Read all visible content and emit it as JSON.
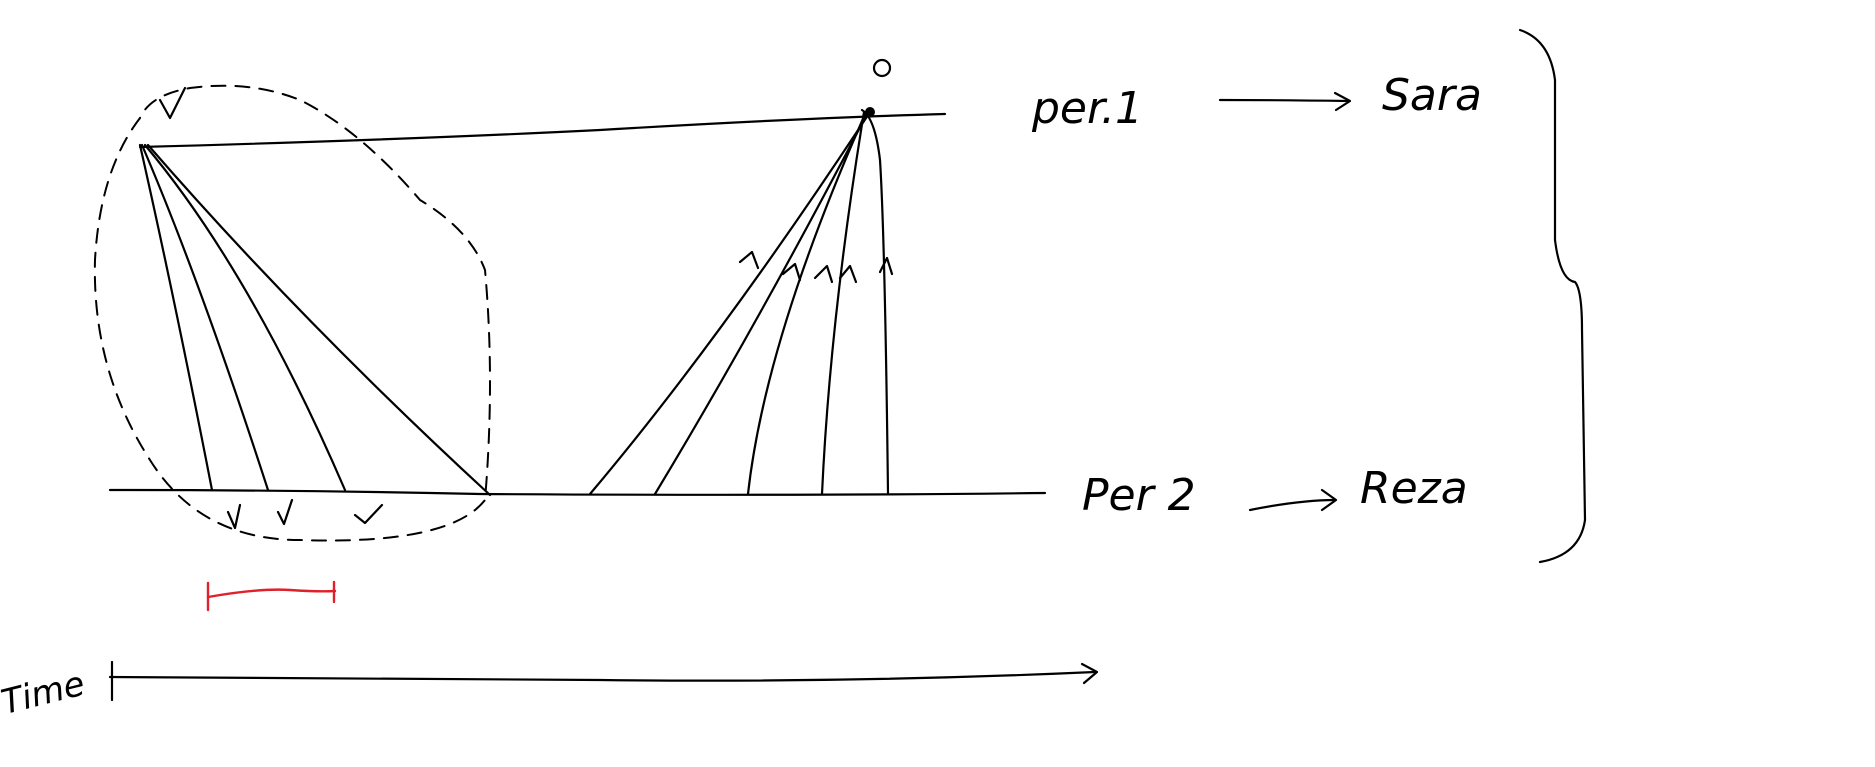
{
  "labels": {
    "per1": "per.1",
    "per1_name": "Sara",
    "per2": "Per 2",
    "per2_name": "Reza",
    "time": "Time"
  },
  "colors": {
    "ink": "#000000",
    "highlight": "#e0202a",
    "background": "#ffffff"
  }
}
